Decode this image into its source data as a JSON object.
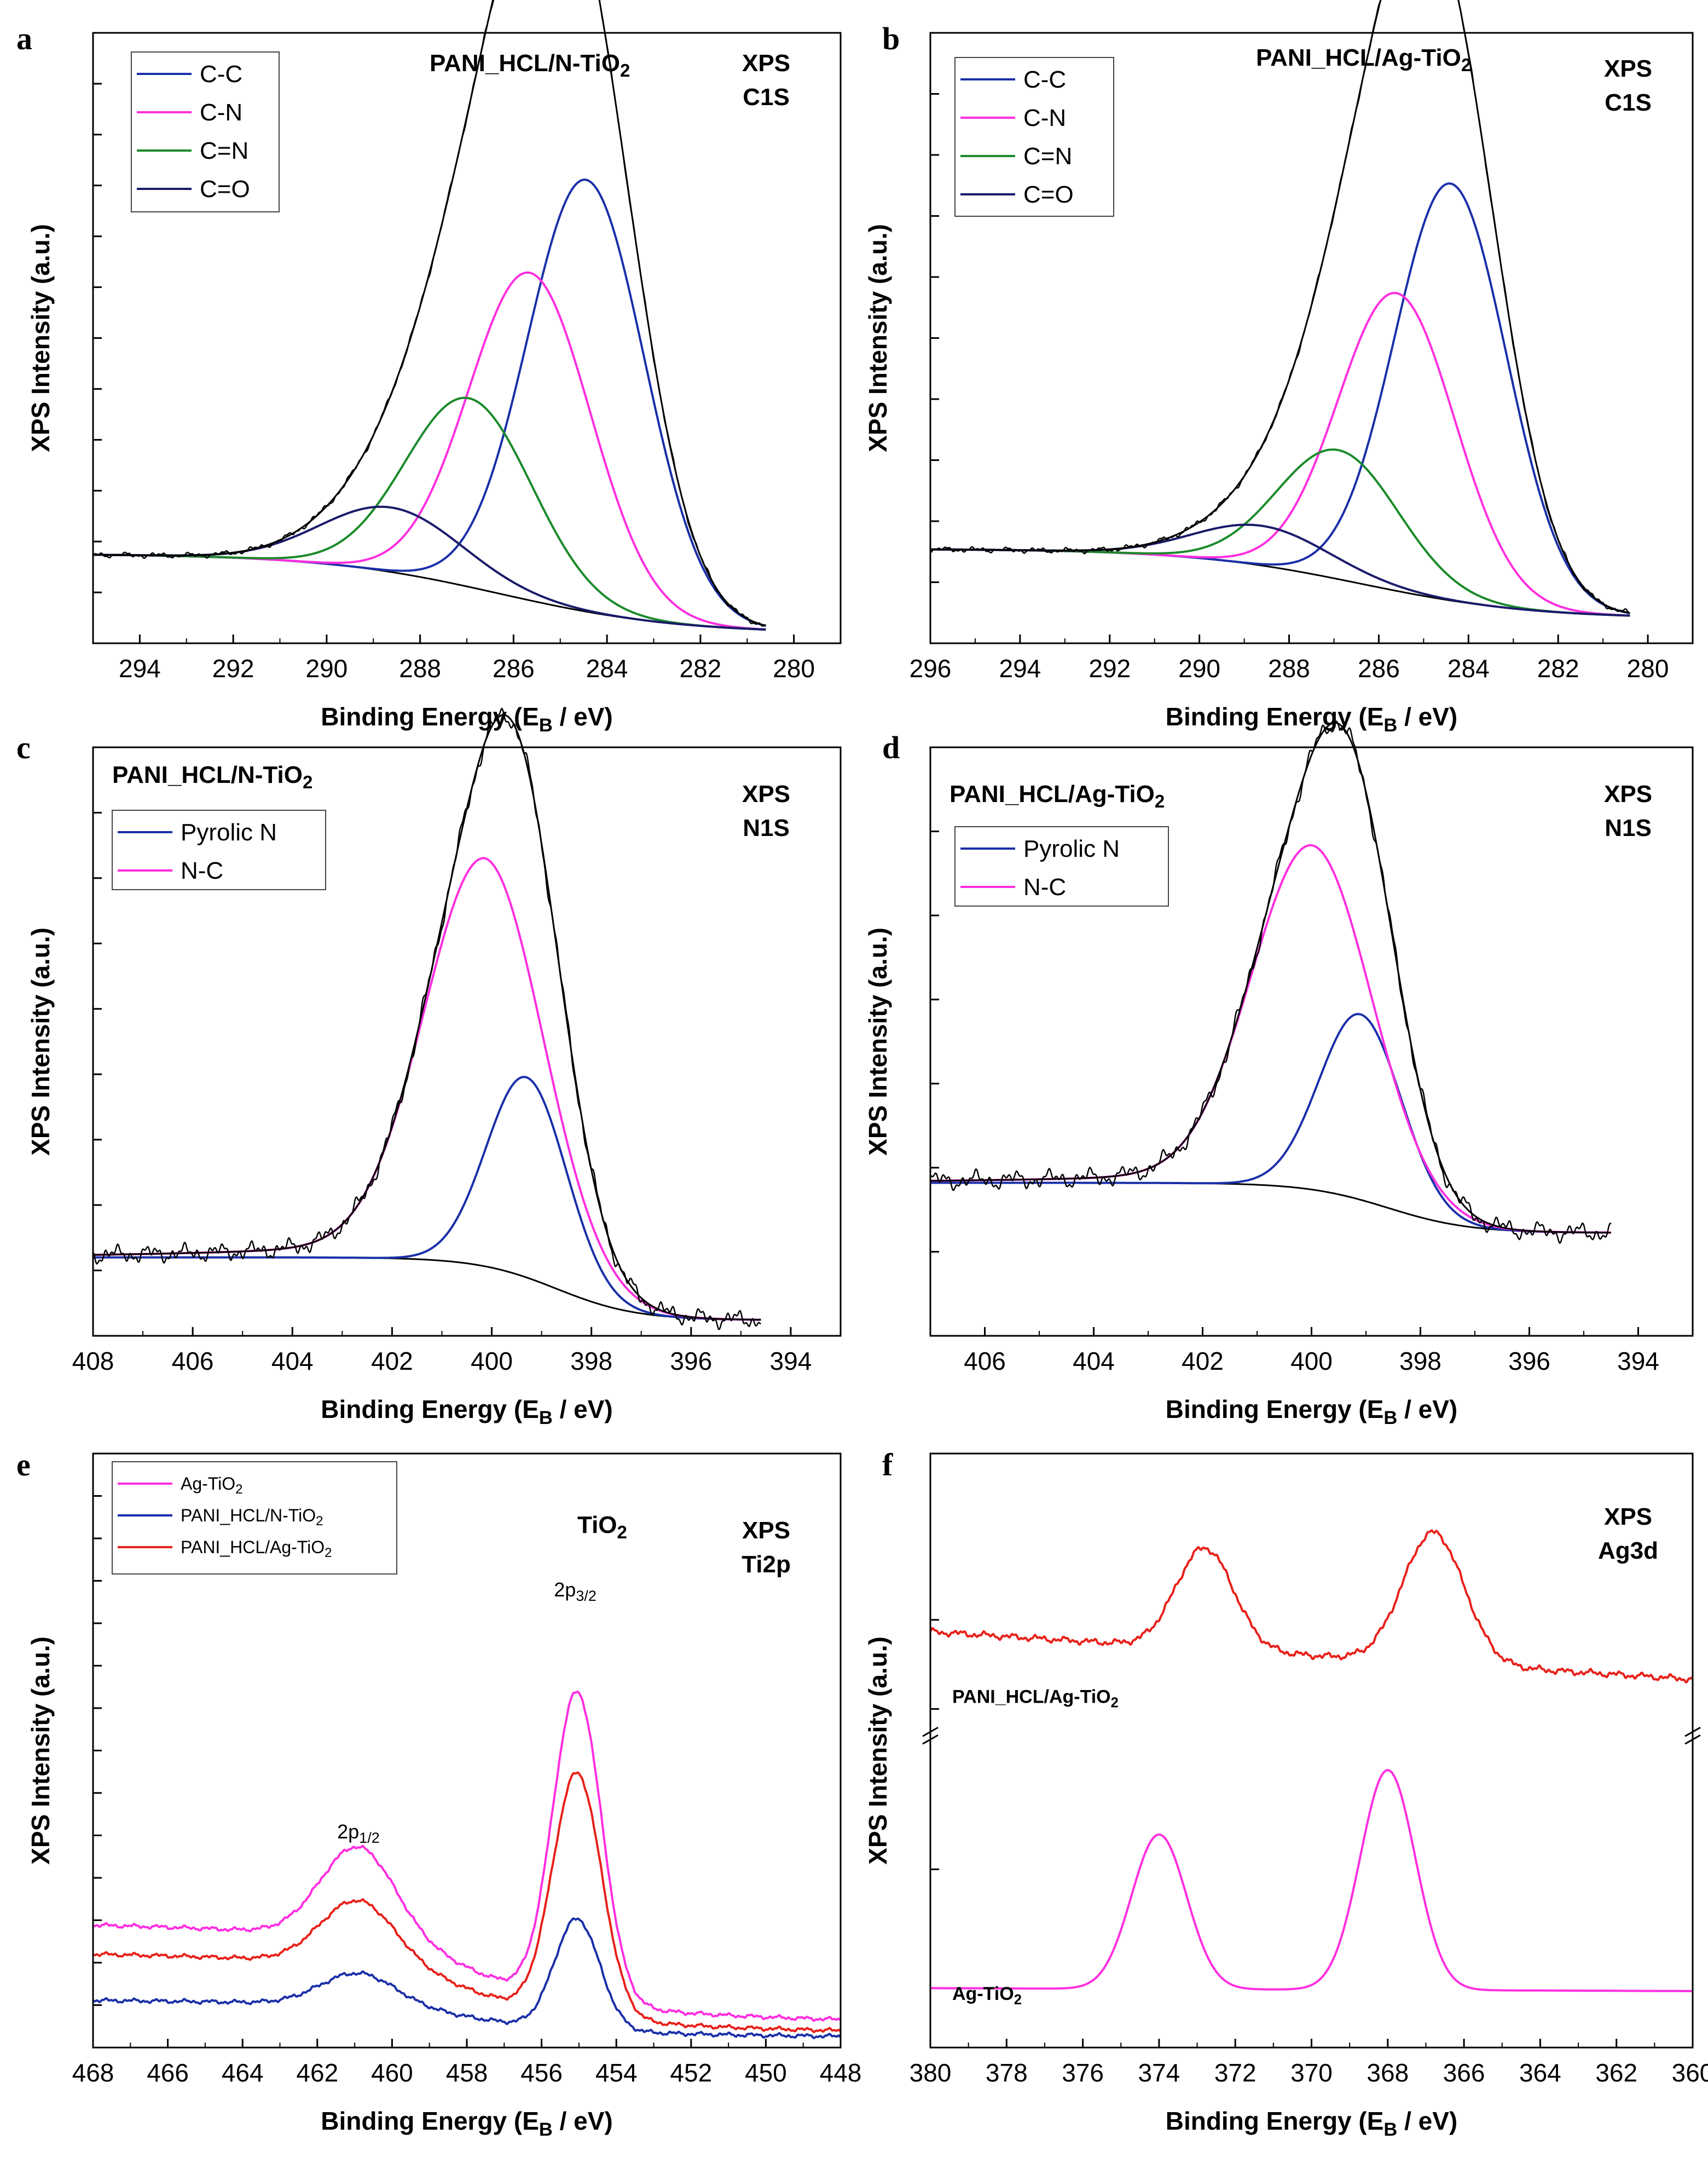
{
  "figure": "XPS spectra of PANI_HCL/N-TiO2 and PANI_HCL/Ag-TiO2",
  "chart_data": [
    {
      "id": "a",
      "type": "line",
      "letter": "a",
      "title": "PANI_HCL/N-TiO2",
      "title_main": "PANI_HCL/N-TiO",
      "title_sub": "2",
      "tag1": "XPS",
      "tag2": "C1S",
      "xlabel_main": "Binding Energy  (E",
      "xlabel_sub": "B",
      "xlabel_tail": " / eV)",
      "ylabel": "XPS Intensity (a.u.)",
      "xlim": [
        295,
        279
      ],
      "ylim": [
        -0.15,
        1.08
      ],
      "xticks": [
        294,
        292,
        290,
        288,
        286,
        284,
        282,
        280
      ],
      "ytick_count": 11,
      "legend": [
        {
          "label": "C-C",
          "color": "#1a2fa8"
        },
        {
          "label": "C-N",
          "color": "#ff2ee0"
        },
        {
          "label": "C=N",
          "color": "#1a8a2a"
        },
        {
          "label": "C=O",
          "color": "#1a1a6a"
        }
      ],
      "data_range": [
        295,
        280.6
      ],
      "background": {
        "high": 0.03,
        "low": -0.13,
        "center": 286.3,
        "width": 1.9,
        "noise": 0.004
      },
      "components": [
        {
          "name": "C-C",
          "color": "#1a2fa8",
          "center": 284.45,
          "height": 0.87,
          "width": 1.25
        },
        {
          "name": "C-N",
          "color": "#ff2ee0",
          "center": 285.65,
          "height": 0.66,
          "width": 1.3
        },
        {
          "name": "C=N",
          "color": "#1a8a2a",
          "center": 286.95,
          "height": 0.38,
          "width": 1.35
        },
        {
          "name": "C=O",
          "color": "#1a1a6a",
          "center": 288.6,
          "height": 0.13,
          "width": 1.5
        }
      ],
      "envelope_noise": 0.006
    },
    {
      "id": "b",
      "type": "line",
      "letter": "b",
      "title": "PANI_HCL/Ag-TiO2",
      "title_main": "PANI_HCL/Ag-TiO",
      "title_sub": "2",
      "tag1": "XPS",
      "tag2": "C1S",
      "xlabel_main": "Binding Energy  (E",
      "xlabel_sub": "B",
      "xlabel_tail": " / eV)",
      "ylabel": "XPS Intensity (a.u.)",
      "xlim": [
        296,
        279
      ],
      "ylim": [
        -0.15,
        1.08
      ],
      "xticks": [
        296,
        294,
        292,
        290,
        288,
        286,
        284,
        282,
        280
      ],
      "ytick_count": 9,
      "legend": [
        {
          "label": "C-C",
          "color": "#1a2fa8"
        },
        {
          "label": "C-N",
          "color": "#ff2ee0"
        },
        {
          "label": "C=N",
          "color": "#1a8a2a"
        },
        {
          "label": "C=O",
          "color": "#1a1a6a"
        }
      ],
      "data_range": [
        296,
        280.4
      ],
      "background": {
        "high": 0.04,
        "low": -0.1,
        "center": 286.4,
        "width": 1.9,
        "noise": 0.004
      },
      "components": [
        {
          "name": "C-C",
          "color": "#1a2fa8",
          "center": 284.4,
          "height": 0.84,
          "width": 1.25
        },
        {
          "name": "C-N",
          "color": "#ff2ee0",
          "center": 285.6,
          "height": 0.6,
          "width": 1.3
        },
        {
          "name": "C=N",
          "color": "#1a8a2a",
          "center": 286.9,
          "height": 0.26,
          "width": 1.35
        },
        {
          "name": "C=O",
          "color": "#1a1a6a",
          "center": 288.6,
          "height": 0.08,
          "width": 1.5
        }
      ],
      "envelope_noise": 0.006
    },
    {
      "id": "c",
      "type": "line",
      "letter": "c",
      "title": "PANI_HCL/N-TiO2",
      "title_main": "PANI_HCL/N-TiO",
      "title_sub": "2",
      "tag1": "XPS",
      "tag2": "N1S",
      "xlabel_main": "Binding Energy  (E",
      "xlabel_sub": "B",
      "xlabel_tail": " / eV)",
      "ylabel": "XPS Intensity (a.u.)",
      "xlim": [
        408,
        393
      ],
      "ylim": [
        -0.2,
        1.3
      ],
      "xticks": [
        408,
        406,
        404,
        402,
        400,
        398,
        396,
        394
      ],
      "ytick_count": 8,
      "legend": [
        {
          "label": "Pyrolic N",
          "color": "#1a2fa8"
        },
        {
          "label": "N-C",
          "color": "#ff2ee0"
        }
      ],
      "data_range": [
        408,
        394.6
      ],
      "background": {
        "high": 0.0,
        "low": -0.16,
        "center": 398.7,
        "width": 0.8,
        "noise": 0.0
      },
      "components": [
        {
          "name": "Pyrolic N",
          "color": "#1a2fa8",
          "center": 399.3,
          "height": 0.51,
          "width": 0.8
        },
        {
          "name": "N-C",
          "color": "#ff2ee0",
          "center": 400.15,
          "height": 0.98,
          "width": 1.2,
          "tail": 0.06
        }
      ],
      "envelope_noise": 0.025
    },
    {
      "id": "d",
      "type": "line",
      "letter": "d",
      "title": "PANI_HCL/Ag-TiO2",
      "title_main": "PANI_HCL/Ag-TiO",
      "title_sub": "2",
      "tag1": "XPS",
      "tag2": "N1S",
      "xlabel_main": "Binding Energy  (E",
      "xlabel_sub": "B",
      "xlabel_tail": " / eV)",
      "ylabel": "XPS Intensity (a.u.)",
      "xlim": [
        407,
        393
      ],
      "ylim": [
        -0.5,
        1.5
      ],
      "xticks": [
        406,
        404,
        402,
        400,
        398,
        396,
        394
      ],
      "ytick_count": 6,
      "legend": [
        {
          "label": "Pyrolic N",
          "color": "#1a2fa8"
        },
        {
          "label": "N-C",
          "color": "#ff2ee0"
        }
      ],
      "data_range": [
        407,
        394.5
      ],
      "background": {
        "high": 0.02,
        "low": -0.15,
        "center": 398.6,
        "width": 0.75,
        "noise": 0.0
      },
      "components": [
        {
          "name": "Pyrolic N",
          "color": "#1a2fa8",
          "center": 399.1,
          "height": 0.63,
          "width": 0.75
        },
        {
          "name": "N-C",
          "color": "#ff2ee0",
          "center": 400.0,
          "height": 1.12,
          "width": 1.1,
          "tail": 0.05
        }
      ],
      "envelope_noise": 0.035
    },
    {
      "id": "e",
      "type": "line",
      "letter": "e",
      "title": "TiO2",
      "title_main": "TiO",
      "title_sub": "2",
      "tag1": "XPS",
      "tag2": "Ti2p",
      "xlabel_main": "Binding Energy  (E",
      "xlabel_sub": "B",
      "xlabel_tail": " / eV)",
      "ylabel": "XPS Intensity (a.u.)",
      "xlim": [
        468,
        448
      ],
      "ylim": [
        0,
        1.08
      ],
      "xticks": [
        468,
        466,
        464,
        462,
        460,
        458,
        456,
        454,
        452,
        450,
        448
      ],
      "ytick_count": 13,
      "legend_small": [
        {
          "main": "Ag-TiO",
          "sub": "2",
          "color": "#ff2ee0"
        },
        {
          "main": "PANI_HCL/N-TiO",
          "sub": "2",
          "color": "#1a2fa8"
        },
        {
          "main": "PANI_HCL/Ag-TiO",
          "sub": "2",
          "color": "#e8201a"
        }
      ],
      "annotations": [
        {
          "main": "2p",
          "sub": "1/2",
          "x": 460.9,
          "y": 0.38
        },
        {
          "main": "2p",
          "sub": "3/2",
          "x": 455.1,
          "y": 0.82
        }
      ],
      "series": [
        {
          "name": "Ag-TiO2",
          "color": "#ff2ee0",
          "base_start": 0.26,
          "base_end": 0.05,
          "dip": 0.19,
          "p1_center": 460.9,
          "p1_height": 0.17,
          "p1_width": 1.0,
          "p2_center": 455.05,
          "p2_height": 0.56,
          "p2_width": 0.65
        },
        {
          "name": "PANI_HCL/Ag-TiO2",
          "color": "#e8201a",
          "base_start": 0.2,
          "base_end": 0.03,
          "dip": 0.16,
          "p1_center": 460.9,
          "p1_height": 0.12,
          "p1_width": 1.0,
          "p2_center": 455.05,
          "p2_height": 0.44,
          "p2_width": 0.65
        },
        {
          "name": "PANI_HCL/N-TiO2",
          "color": "#1a2fa8",
          "base_start": 0.1,
          "base_end": 0.02,
          "dip": 0.085,
          "p1_center": 460.9,
          "p1_height": 0.06,
          "p1_width": 1.0,
          "p2_center": 455.05,
          "p2_height": 0.2,
          "p2_width": 0.6
        }
      ]
    },
    {
      "id": "f",
      "type": "line",
      "letter": "f",
      "title": "",
      "title_main": "",
      "title_sub": "",
      "tag1": "XPS",
      "tag2": "Ag3d",
      "xlabel_main": "Binding Energy  (E",
      "xlabel_sub": "B",
      "xlabel_tail": " / eV)",
      "ylabel": "XPS Intensity (a.u.)",
      "xlim": [
        380,
        360
      ],
      "ylim": [
        0,
        1
      ],
      "xticks": [
        380,
        378,
        376,
        374,
        372,
        370,
        368,
        366,
        364,
        362,
        360
      ],
      "axis_break": true,
      "series_labels": [
        {
          "main": "PANI_HCL/Ag-TiO",
          "sub": "2",
          "y": 0.58
        },
        {
          "main": "Ag-TiO",
          "sub": "2",
          "y": 0.08
        }
      ],
      "series": [
        {
          "name": "PANI_HCL/Ag-TiO2",
          "color": "#e8201a",
          "base": 0.7,
          "tail": 0.62,
          "p1_center": 372.8,
          "p1_height": 0.17,
          "p1_width": 0.75,
          "p2_center": 366.8,
          "p2_height": 0.22,
          "p2_width": 0.8,
          "noise": 0.006
        },
        {
          "name": "Ag-TiO2",
          "color": "#ff2ee0",
          "base": 0.1,
          "tail": 0.095,
          "p1_center": 374.0,
          "p1_height": 0.26,
          "p1_width": 0.72,
          "p2_center": 368.0,
          "p2_height": 0.37,
          "p2_width": 0.72,
          "noise": 0.0
        }
      ]
    }
  ]
}
